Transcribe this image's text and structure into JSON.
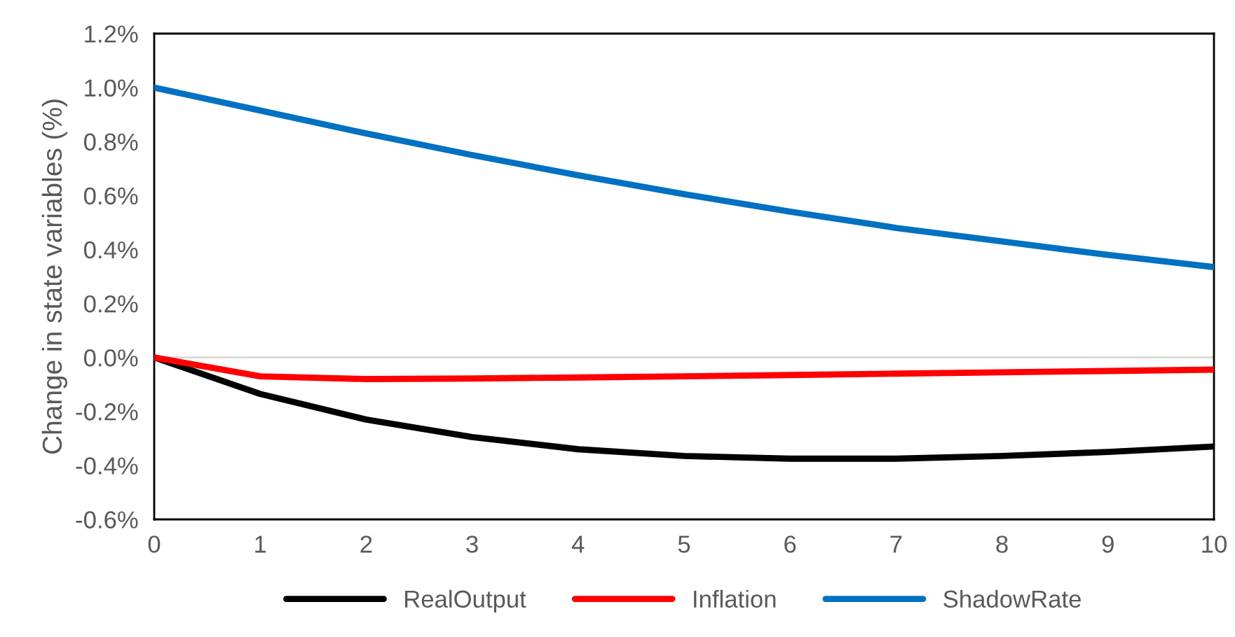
{
  "chart_data": {
    "type": "line",
    "ylabel": "Change in state variables (%)",
    "x": [
      0,
      1,
      2,
      3,
      4,
      5,
      6,
      7,
      8,
      9,
      10
    ],
    "series": [
      {
        "name": "RealOutput",
        "color": "#000000",
        "values": [
          0,
          -0.135,
          -0.23,
          -0.295,
          -0.34,
          -0.365,
          -0.375,
          -0.375,
          -0.365,
          -0.35,
          -0.33
        ]
      },
      {
        "name": "Inflation",
        "color": "#ff0000",
        "values": [
          0,
          -0.07,
          -0.08,
          -0.078,
          -0.074,
          -0.07,
          -0.065,
          -0.06,
          -0.055,
          -0.05,
          -0.045
        ]
      },
      {
        "name": "ShadowRate",
        "color": "#0070c0",
        "values": [
          1.0,
          0.915,
          0.83,
          0.75,
          0.675,
          0.605,
          0.54,
          0.48,
          0.43,
          0.38,
          0.335
        ]
      }
    ],
    "xlim": [
      0,
      10
    ],
    "xticks": [
      0,
      1,
      2,
      3,
      4,
      5,
      6,
      7,
      8,
      9,
      10
    ],
    "ylim": [
      -0.6,
      1.2
    ],
    "yticks": [
      {
        "value": -0.6,
        "label": "-0.6%"
      },
      {
        "value": -0.4,
        "label": "-0.4%"
      },
      {
        "value": -0.2,
        "label": "-0.2%"
      },
      {
        "value": 0,
        "label": "0.0%"
      },
      {
        "value": 0.2,
        "label": "0.2%"
      },
      {
        "value": 0.4,
        "label": "0.4%"
      },
      {
        "value": 0.6,
        "label": "0.6%"
      },
      {
        "value": 0.8,
        "label": "0.8%"
      },
      {
        "value": 1.0,
        "label": "1.0%"
      },
      {
        "value": 1.2,
        "label": "1.2%"
      }
    ],
    "ref_lines": [
      {
        "axis": "y",
        "value": 0,
        "label": null,
        "color": "#d9d9d9"
      }
    ],
    "grid": false,
    "legend": "bottom",
    "marker": "none",
    "line_style": "solid"
  }
}
